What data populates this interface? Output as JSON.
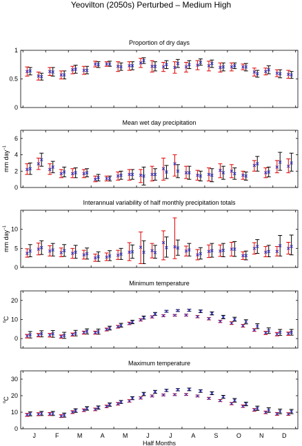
{
  "figure_title": "Yeovilton (2050s) Perturbed – Medium High",
  "colors": {
    "observed": "#000000",
    "perturbed": "#e00000",
    "mean_marker": "#3030c0"
  },
  "chart_data": [
    {
      "type": "errorbar",
      "title": "Proportion of dry days",
      "ylabel": "",
      "ylim": [
        0,
        1
      ],
      "yticks": [
        0,
        0.5,
        1
      ],
      "ytick_labels": [
        "0",
        "0.5",
        "1"
      ],
      "x": [
        1,
        2,
        3,
        4,
        5,
        6,
        7,
        8,
        9,
        10,
        11,
        12,
        13,
        14,
        15,
        16,
        17,
        18,
        19,
        20,
        21,
        22,
        23,
        24
      ],
      "series": [
        {
          "role": "black",
          "center": [
            0.64,
            0.54,
            0.62,
            0.57,
            0.67,
            0.65,
            0.75,
            0.76,
            0.71,
            0.73,
            0.82,
            0.72,
            0.75,
            0.77,
            0.75,
            0.79,
            0.77,
            0.71,
            0.73,
            0.71,
            0.59,
            0.66,
            0.59,
            0.57
          ],
          "low": [
            0.57,
            0.48,
            0.55,
            0.5,
            0.6,
            0.59,
            0.7,
            0.72,
            0.65,
            0.66,
            0.77,
            0.64,
            0.68,
            0.7,
            0.68,
            0.74,
            0.7,
            0.64,
            0.68,
            0.64,
            0.53,
            0.59,
            0.52,
            0.51
          ],
          "high": [
            0.7,
            0.6,
            0.7,
            0.64,
            0.74,
            0.72,
            0.8,
            0.81,
            0.78,
            0.8,
            0.87,
            0.8,
            0.82,
            0.84,
            0.82,
            0.85,
            0.83,
            0.78,
            0.78,
            0.77,
            0.65,
            0.73,
            0.66,
            0.63
          ]
        },
        {
          "role": "red",
          "center": [
            0.63,
            0.55,
            0.63,
            0.57,
            0.66,
            0.65,
            0.76,
            0.76,
            0.72,
            0.73,
            0.78,
            0.72,
            0.71,
            0.7,
            0.71,
            0.74,
            0.73,
            0.7,
            0.71,
            0.71,
            0.62,
            0.63,
            0.6,
            0.58
          ],
          "low": [
            0.55,
            0.48,
            0.56,
            0.5,
            0.59,
            0.58,
            0.71,
            0.72,
            0.63,
            0.65,
            0.7,
            0.62,
            0.63,
            0.6,
            0.62,
            0.66,
            0.64,
            0.62,
            0.64,
            0.66,
            0.55,
            0.57,
            0.54,
            0.51
          ],
          "high": [
            0.71,
            0.62,
            0.7,
            0.64,
            0.72,
            0.72,
            0.81,
            0.8,
            0.8,
            0.8,
            0.86,
            0.82,
            0.79,
            0.8,
            0.79,
            0.82,
            0.81,
            0.78,
            0.78,
            0.76,
            0.69,
            0.69,
            0.66,
            0.65
          ]
        }
      ]
    },
    {
      "type": "errorbar",
      "title": "Mean wet day precipitation",
      "ylabel": "mm day",
      "ylabel_sup": "−1",
      "ylim": [
        0,
        7
      ],
      "yticks": [
        0,
        2,
        4,
        6
      ],
      "ytick_labels": [
        "0",
        "2",
        "4",
        "6"
      ],
      "x": [
        1,
        2,
        3,
        4,
        5,
        6,
        7,
        8,
        9,
        10,
        11,
        12,
        13,
        14,
        15,
        16,
        17,
        18,
        19,
        20,
        21,
        22,
        23,
        24
      ],
      "series": [
        {
          "role": "black",
          "center": [
            2.3,
            3.4,
            2.5,
            1.9,
            1.8,
            1.8,
            1.2,
            1.1,
            1.5,
            1.6,
            1.4,
            1.6,
            1.9,
            2.0,
            1.8,
            1.4,
            1.5,
            1.8,
            1.7,
            1.4,
            2.9,
            1.9,
            3.1,
            3.0
          ],
          "low": [
            1.6,
            2.6,
            1.8,
            1.3,
            1.2,
            1.3,
            0.8,
            0.8,
            1.0,
            1.0,
            0.3,
            0.9,
            1.1,
            1.2,
            1.0,
            0.8,
            0.7,
            1.0,
            1.0,
            0.9,
            2.0,
            1.3,
            2.1,
            2.0
          ],
          "high": [
            3.0,
            4.2,
            3.2,
            2.5,
            2.4,
            2.3,
            1.6,
            1.4,
            2.0,
            2.2,
            2.5,
            2.3,
            2.7,
            2.8,
            2.6,
            2.0,
            2.3,
            2.6,
            2.4,
            1.9,
            3.8,
            2.5,
            4.3,
            4.2
          ]
        },
        {
          "role": "red",
          "center": [
            2.2,
            2.9,
            2.2,
            1.7,
            1.7,
            1.7,
            1.0,
            1.1,
            1.4,
            1.6,
            1.5,
            1.6,
            2.3,
            2.9,
            1.8,
            1.5,
            1.6,
            2.1,
            2.0,
            1.5,
            2.7,
            1.8,
            2.5,
            2.6
          ],
          "low": [
            1.6,
            2.2,
            1.6,
            1.2,
            1.2,
            1.2,
            0.7,
            0.8,
            0.9,
            0.9,
            0.6,
            0.8,
            0.9,
            1.4,
            1.1,
            0.9,
            0.8,
            1.2,
            1.2,
            1.0,
            2.0,
            1.2,
            1.8,
            1.8
          ],
          "high": [
            2.9,
            3.6,
            2.9,
            2.2,
            2.3,
            2.2,
            1.4,
            1.4,
            1.9,
            2.2,
            2.2,
            2.6,
            3.6,
            4.0,
            2.6,
            2.1,
            2.4,
            2.9,
            2.8,
            2.0,
            3.3,
            2.4,
            3.3,
            3.5
          ]
        }
      ]
    },
    {
      "type": "errorbar",
      "title": "Interannual variability of half monthly precipitation totals",
      "ylabel": "mm day",
      "ylabel_sup": "−1",
      "ylim": [
        0,
        15
      ],
      "yticks": [
        0,
        5,
        10
      ],
      "ytick_labels": [
        "0",
        "5",
        "10"
      ],
      "x": [
        1,
        2,
        3,
        4,
        5,
        6,
        7,
        8,
        9,
        10,
        11,
        12,
        13,
        14,
        15,
        16,
        17,
        18,
        19,
        20,
        21,
        22,
        23,
        24
      ],
      "series": [
        {
          "role": "black",
          "center": [
            4.3,
            5.2,
            4.6,
            4.4,
            4.0,
            3.6,
            2.8,
            3.0,
            3.5,
            4.1,
            4.0,
            3.9,
            5.2,
            5.1,
            4.6,
            3.6,
            4.4,
            4.5,
            4.8,
            3.1,
            5.5,
            4.2,
            5.7,
            5.5
          ],
          "low": [
            2.8,
            3.4,
            3.0,
            2.9,
            2.4,
            2.2,
            1.6,
            1.8,
            2.1,
            2.4,
            1.0,
            2.4,
            2.7,
            3.2,
            3.0,
            2.2,
            2.7,
            2.8,
            2.9,
            2.0,
            3.7,
            2.8,
            3.0,
            3.3
          ],
          "high": [
            6.0,
            7.0,
            6.3,
            6.0,
            5.8,
            5.1,
            4.1,
            4.4,
            5.0,
            5.9,
            7.0,
            5.8,
            8.0,
            7.2,
            6.3,
            5.2,
            6.3,
            6.3,
            6.8,
            4.3,
            7.3,
            5.8,
            8.4,
            8.5
          ]
        },
        {
          "role": "red",
          "center": [
            3.7,
            4.8,
            4.3,
            3.9,
            3.7,
            3.3,
            2.5,
            2.7,
            3.2,
            4.0,
            5.3,
            4.4,
            6.5,
            5.4,
            4.3,
            3.3,
            4.2,
            4.3,
            4.8,
            3.1,
            5.0,
            4.0,
            4.2,
            5.0
          ],
          "low": [
            2.7,
            3.3,
            3.0,
            2.8,
            2.4,
            2.2,
            1.6,
            1.8,
            2.1,
            1.8,
            1.0,
            2.5,
            2.0,
            2.3,
            3.0,
            2.0,
            2.6,
            2.9,
            3.0,
            2.1,
            3.5,
            2.8,
            3.0,
            3.5
          ],
          "high": [
            4.9,
            6.4,
            5.7,
            5.1,
            5.0,
            4.5,
            3.5,
            3.8,
            4.5,
            6.5,
            9.3,
            6.3,
            9.6,
            13.0,
            5.6,
            4.7,
            5.9,
            5.9,
            6.6,
            4.1,
            6.5,
            5.5,
            5.5,
            6.6
          ]
        }
      ]
    },
    {
      "type": "errorbar",
      "title": "Minimum temperature",
      "ylabel": "C",
      "ylabel_sup": "o",
      "ylim": [
        -5,
        25
      ],
      "yticks": [
        0,
        10,
        20
      ],
      "ytick_labels": [
        "0",
        "10",
        "20"
      ],
      "x": [
        1,
        2,
        3,
        4,
        5,
        6,
        7,
        8,
        9,
        10,
        11,
        12,
        13,
        14,
        15,
        16,
        17,
        18,
        19,
        20,
        21,
        22,
        23,
        24
      ],
      "series": [
        {
          "role": "black",
          "center": [
            2.0,
            2.5,
            2.5,
            1.7,
            2.8,
            3.8,
            3.6,
            5.5,
            7.0,
            8.7,
            10.9,
            12.9,
            14.3,
            14.7,
            14.9,
            14.3,
            13.2,
            11.3,
            10.1,
            8.8,
            6.5,
            4.2,
            3.3,
            3.3
          ],
          "low": [
            0.3,
            0.9,
            0.7,
            0.1,
            1.4,
            2.4,
            2.3,
            4.5,
            6.0,
            7.8,
            10.2,
            12.2,
            13.8,
            14.2,
            14.3,
            13.6,
            12.4,
            10.4,
            9.1,
            7.7,
            5.2,
            2.7,
            1.7,
            1.8
          ],
          "high": [
            3.7,
            4.1,
            4.2,
            3.3,
            4.3,
            5.1,
            5.0,
            6.5,
            8.0,
            9.6,
            11.8,
            13.7,
            14.8,
            15.2,
            15.4,
            15.0,
            14.0,
            12.2,
            11.2,
            9.9,
            7.8,
            5.6,
            4.8,
            4.8
          ]
        },
        {
          "role": "red",
          "center": [
            1.3,
            1.8,
            1.8,
            1.0,
            2.1,
            3.2,
            3.1,
            4.7,
            6.2,
            7.9,
            9.8,
            11.4,
            12.0,
            12.2,
            12.3,
            11.5,
            10.4,
            9.0,
            8.1,
            6.7,
            4.5,
            3.0,
            2.3,
            2.6
          ],
          "low": [
            0.3,
            0.9,
            0.8,
            0.2,
            1.3,
            2.3,
            2.3,
            4.0,
            5.5,
            7.3,
            9.2,
            10.8,
            11.5,
            11.8,
            11.8,
            10.9,
            9.8,
            8.4,
            7.4,
            6.0,
            3.8,
            2.1,
            1.4,
            1.7
          ],
          "high": [
            2.2,
            2.7,
            2.7,
            1.9,
            2.9,
            3.9,
            3.9,
            5.5,
            6.9,
            8.6,
            10.4,
            11.9,
            12.5,
            12.6,
            12.8,
            12.1,
            11.0,
            9.6,
            8.8,
            7.4,
            5.2,
            3.8,
            3.2,
            3.4
          ]
        }
      ]
    },
    {
      "type": "errorbar",
      "title": "Maximum temperature",
      "ylabel": "C",
      "ylabel_sup": "o",
      "xlabel": "Half Months",
      "ylim": [
        0,
        35
      ],
      "yticks": [
        0,
        10,
        20,
        30
      ],
      "ytick_labels": [
        "0",
        "10",
        "20",
        "30"
      ],
      "month_labels": [
        "J",
        "F",
        "M",
        "A",
        "M",
        "J",
        "J",
        "A",
        "S",
        "O",
        "N",
        "D"
      ],
      "x": [
        1,
        2,
        3,
        4,
        5,
        6,
        7,
        8,
        9,
        10,
        11,
        12,
        13,
        14,
        15,
        16,
        17,
        18,
        19,
        20,
        21,
        22,
        23,
        24
      ],
      "series": [
        {
          "role": "black",
          "center": [
            9.0,
            9.3,
            9.3,
            8.3,
            11.0,
            12.3,
            12.8,
            14.6,
            16.2,
            18.5,
            21.0,
            22.3,
            23.2,
            23.6,
            23.8,
            22.8,
            21.5,
            19.3,
            17.2,
            15.0,
            12.4,
            11.3,
            10.5,
            10.4
          ],
          "low": [
            7.8,
            8.0,
            8.0,
            7.0,
            9.9,
            11.2,
            11.8,
            13.6,
            15.3,
            17.6,
            20.0,
            21.4,
            22.5,
            22.9,
            23.0,
            22.0,
            20.6,
            18.4,
            16.1,
            13.9,
            11.1,
            9.9,
            9.1,
            9.1
          ],
          "high": [
            10.2,
            10.5,
            10.5,
            9.5,
            12.1,
            13.4,
            13.8,
            15.6,
            17.1,
            19.4,
            22.0,
            23.2,
            23.9,
            24.3,
            24.6,
            23.6,
            22.4,
            20.2,
            18.3,
            16.1,
            13.7,
            12.7,
            11.9,
            11.7
          ]
        },
        {
          "role": "red",
          "center": [
            8.4,
            8.8,
            8.9,
            7.6,
            10.0,
            11.2,
            11.7,
            13.5,
            15.1,
            16.8,
            18.6,
            19.8,
            20.4,
            20.6,
            20.7,
            19.8,
            18.4,
            17.0,
            15.2,
            13.6,
            11.4,
            9.9,
            9.0,
            8.9
          ],
          "low": [
            7.5,
            7.9,
            8.0,
            6.8,
            9.2,
            10.4,
            10.9,
            12.7,
            14.3,
            16.1,
            18.0,
            19.3,
            19.9,
            20.1,
            20.2,
            19.3,
            17.8,
            16.4,
            14.5,
            12.9,
            10.6,
            9.1,
            8.1,
            8.1
          ],
          "high": [
            9.3,
            9.7,
            9.8,
            8.5,
            10.9,
            12.0,
            12.5,
            14.3,
            15.9,
            17.6,
            19.3,
            20.4,
            21.0,
            21.2,
            21.3,
            20.4,
            19.0,
            17.7,
            15.9,
            14.4,
            12.2,
            10.7,
            9.8,
            9.7
          ]
        }
      ]
    }
  ]
}
